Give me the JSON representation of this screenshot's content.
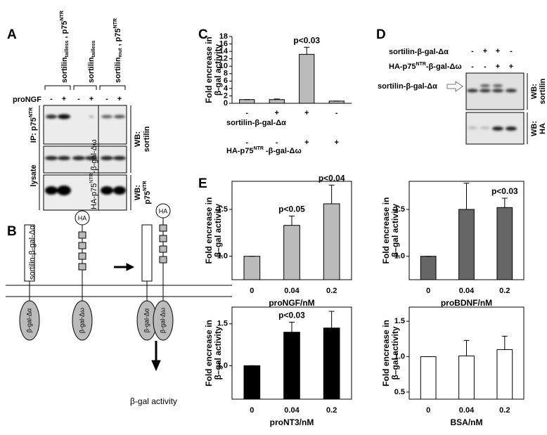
{
  "panel_labels": [
    "A",
    "B",
    "C",
    "D",
    "E"
  ],
  "panel_a": {
    "groups": [
      {
        "name": "sortilin",
        "sub": "tailless",
        "suffix": " , p75",
        "sup": "NTR"
      },
      {
        "name": "sortilin",
        "sub": "tailless"
      },
      {
        "name": "sortilin",
        "sub": "mut",
        "suffix": " , p75",
        "sup": "NTR"
      }
    ],
    "treatment": "proNGF",
    "signs": [
      "-",
      "+",
      "-",
      "+",
      "-",
      "+"
    ],
    "ip_label": {
      "text": "IP: p75",
      "sup": "NTR"
    },
    "lysate_label": "lysate",
    "wb_sortilin": [
      "WB:",
      "sortilin"
    ],
    "wb_p75": {
      "text": "WB:",
      "line2": "p75",
      "sup": "NTR"
    }
  },
  "panel_b": {
    "sortilin_label": "sortilin-β-gal-Δα",
    "ha_label": {
      "pre": "HA-p75",
      "sup": "NTR",
      "post": "-β-gal-Δω"
    },
    "ha": "HA",
    "alpha": "β-gal-Δα",
    "omega": "β-gal-Δω",
    "readout": "β-gal activity"
  },
  "panel_d": {
    "rows": [
      {
        "label": "sortilin-β-gal-Δα",
        "signs": [
          "-",
          "+",
          "+",
          "-"
        ]
      },
      {
        "label": {
          "pre": "HA-p75",
          "sup": "NTR",
          "post": "-β-gal-Δω"
        },
        "signs": [
          "-",
          "-",
          "+",
          "+"
        ]
      }
    ],
    "band_label": "sortilin-β-gal-Δα",
    "wb": [
      [
        "WB:",
        "sortilin"
      ],
      [
        "WB:",
        "HA"
      ]
    ]
  },
  "chart_data": [
    {
      "type": "bar",
      "ylabel": [
        "Fold encrease in",
        "β-gal activity"
      ],
      "values": [
        1.0,
        1.0,
        13.2,
        0.6
      ],
      "errors": [
        0,
        0.15,
        1.9,
        0
      ],
      "value_annotations": [
        null,
        null,
        "p<0.03",
        null
      ],
      "color": "#bbbbbb",
      "ylim": [
        0,
        18
      ],
      "yticks": [
        0,
        2,
        4,
        6,
        8,
        10,
        12,
        14,
        16,
        18
      ],
      "frame": false,
      "conditions": [
        {
          "label": "sortilin-β-gal-Δα",
          "signs": [
            "-",
            "+",
            "+",
            "-"
          ]
        },
        {
          "label": {
            "pre": "HA-p75",
            "sup": "NTR",
            "post": " -β-gal-Δω"
          },
          "signs": [
            "-",
            "-",
            "+",
            "+"
          ]
        }
      ]
    },
    {
      "type": "bar",
      "ylabel": [
        "Fold encrease in",
        "β–gal activity"
      ],
      "categories": [
        "0",
        "0.04",
        "0.2"
      ],
      "xlabel": "proNGF/nM",
      "values": [
        1.0,
        1.33,
        1.56
      ],
      "errors": [
        0,
        0.1,
        0.2
      ],
      "value_annotations": [
        null,
        "p<0.05",
        "p<0.04"
      ],
      "color": "#bbbbbb",
      "ylim": [
        0.75,
        1.8
      ],
      "yticks": [
        {
          "value": 1,
          "label": "1.0"
        },
        1.5
      ],
      "frame": true
    },
    {
      "type": "bar",
      "ylabel": [
        "Fold encrease in",
        "β–gal activity"
      ],
      "categories": [
        "0",
        "0.04",
        "0.2"
      ],
      "xlabel": "proBDNF/nM",
      "values": [
        1.0,
        1.5,
        1.52
      ],
      "errors": [
        0,
        0.28,
        0.1
      ],
      "value_annotations": [
        null,
        null,
        "p<0.03"
      ],
      "color": "#666666",
      "ylim": [
        0.75,
        1.8
      ],
      "yticks": [
        {
          "value": 1,
          "label": "1.0"
        },
        1.5
      ],
      "frame": true
    },
    {
      "type": "bar",
      "ylabel": [
        "Fold encrease in",
        "β–gal activity"
      ],
      "categories": [
        "0",
        "0.04",
        "0.2"
      ],
      "xlabel": "proNT3/nM",
      "values": [
        1.0,
        1.4,
        1.45
      ],
      "errors": [
        0,
        0.12,
        0.2
      ],
      "value_annotations": [
        null,
        "p<0.03",
        null
      ],
      "color": "#000000",
      "ylim": [
        0.6,
        1.7
      ],
      "yticks": [
        {
          "value": 1,
          "label": "1.0"
        },
        1.5
      ],
      "frame": true
    },
    {
      "type": "bar",
      "ylabel": [
        "Fold encrease in",
        "β–gal activity"
      ],
      "categories": [
        "0",
        "0.04",
        "0.2"
      ],
      "xlabel": "BSA/nM",
      "values": [
        1.0,
        1.01,
        1.1
      ],
      "errors": [
        0,
        0.22,
        0.19
      ],
      "value_annotations": [
        null,
        null,
        null
      ],
      "color": "#ffffff",
      "ylim": [
        0.4,
        1.7
      ],
      "yticks": [
        0.5,
        {
          "value": 1,
          "label": "1.0"
        },
        1.5
      ],
      "frame": true
    }
  ]
}
